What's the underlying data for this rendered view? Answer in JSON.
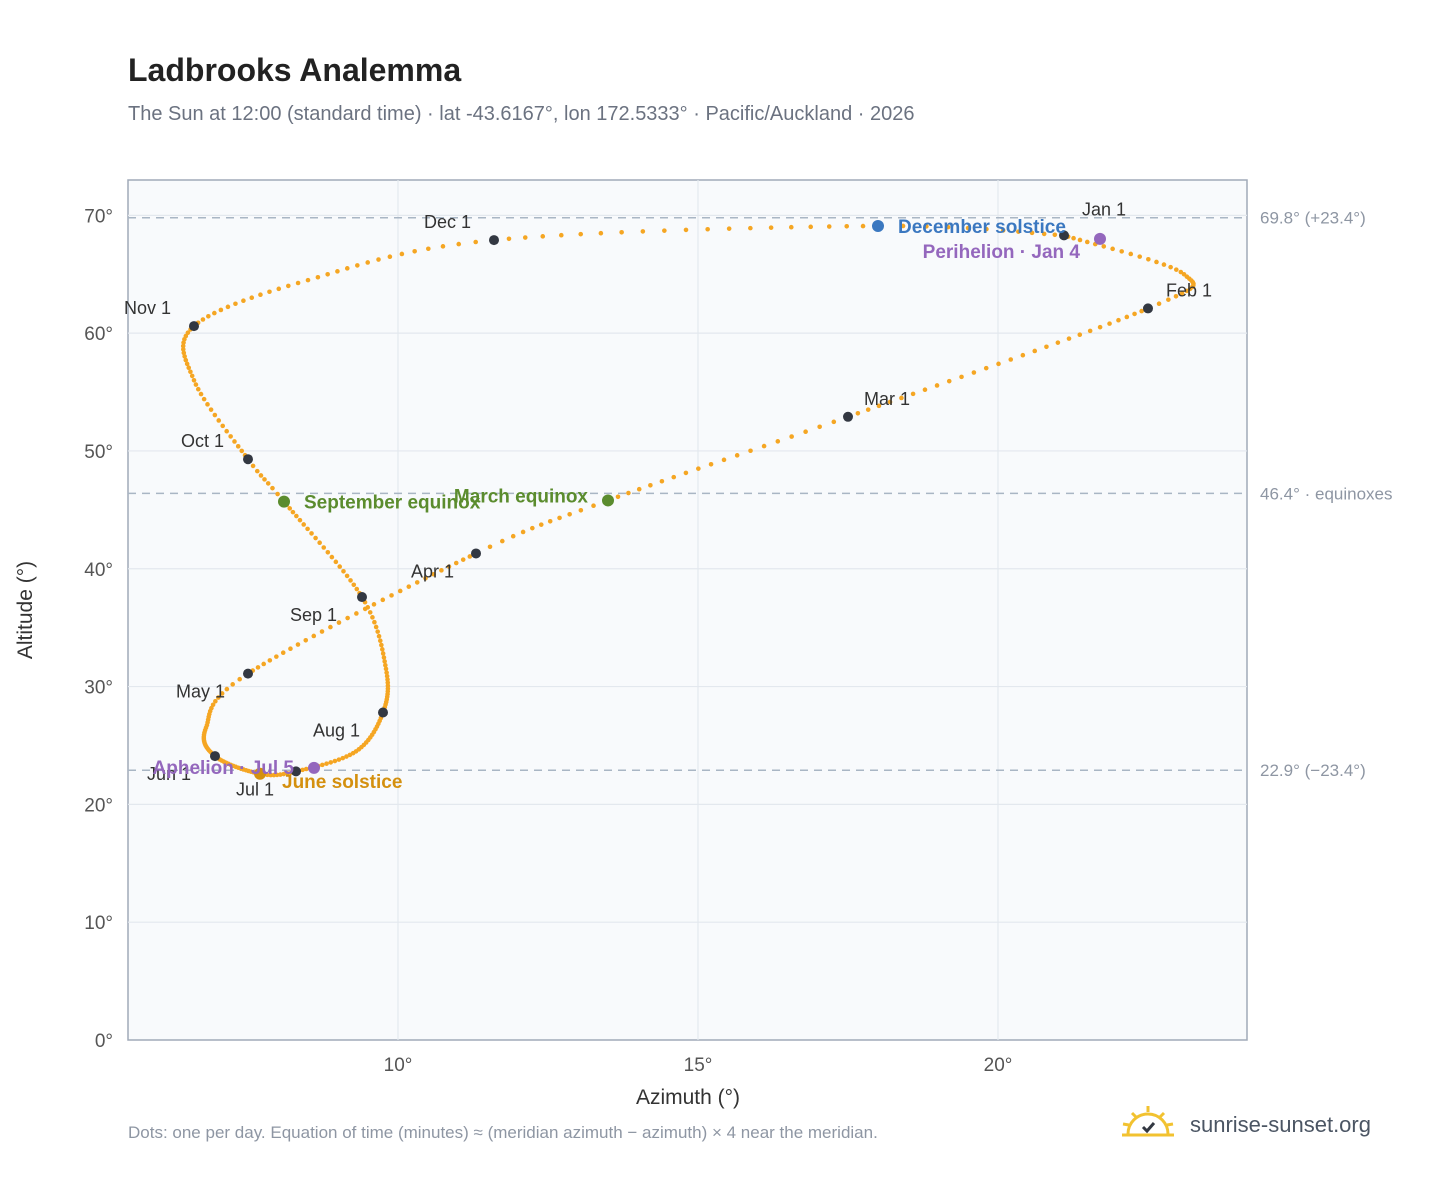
{
  "header": {
    "title": "Ladbrooks Analemma",
    "subtitle": "The Sun at 12:00 (standard time) · lat -43.6167°, lon 172.5333° · Pacific/Auckland · 2026"
  },
  "footer": {
    "note": "Dots: one per day. Equation of time (minutes) ≈ (meridian azimuth − azimuth) × 4 near the meridian.",
    "brand": "sunrise-sunset.org"
  },
  "colors": {
    "path": "#f5a623",
    "month_marker": "#333842",
    "equinox": "#5b8c2e",
    "december_solstice": "#3b78c0",
    "june_solstice": "#d4900f",
    "apsis": "#9467bd",
    "reference_line": "#a9b6c4",
    "plot_background": "#f8fafc",
    "plot_border": "#a0aab8",
    "grid": "#e3e8ee"
  },
  "chart_data": {
    "type": "scatter",
    "title": "Ladbrooks Analemma",
    "xlabel": "Azimuth (°)",
    "ylabel": "Altitude (°)",
    "xlim": [
      5.5,
      24.15
    ],
    "ylim": [
      0,
      73
    ],
    "xticks": [
      10,
      15,
      20
    ],
    "xtick_labels": [
      "10°",
      "15°",
      "20°"
    ],
    "yticks": [
      0,
      10,
      20,
      30,
      40,
      50,
      60,
      70
    ],
    "ytick_labels": [
      "0°",
      "10°",
      "20°",
      "30°",
      "40°",
      "50°",
      "60°",
      "70°"
    ],
    "grid": true,
    "reference_lines": [
      {
        "y": 69.8,
        "label": "69.8° (+23.4°)"
      },
      {
        "y": 46.4,
        "label": "46.4° · equinoxes"
      },
      {
        "y": 22.9,
        "label": "22.9° (−23.4°)"
      }
    ],
    "daily_path_anchors": [
      {
        "doy": 1,
        "az": 21.1,
        "alt": 68.3
      },
      {
        "doy": 18,
        "az": 23.1,
        "alt": 65.0
      },
      {
        "doy": 32,
        "az": 22.5,
        "alt": 62.1
      },
      {
        "doy": 60,
        "az": 17.5,
        "alt": 52.9
      },
      {
        "doy": 79,
        "az": 13.5,
        "alt": 45.8
      },
      {
        "doy": 91,
        "az": 11.3,
        "alt": 41.3
      },
      {
        "doy": 121,
        "az": 7.5,
        "alt": 31.1
      },
      {
        "doy": 136,
        "az": 6.8,
        "alt": 26.5
      },
      {
        "doy": 152,
        "az": 6.95,
        "alt": 24.1
      },
      {
        "doy": 172,
        "az": 7.7,
        "alt": 22.6
      },
      {
        "doy": 182,
        "az": 8.3,
        "alt": 22.8
      },
      {
        "doy": 198,
        "az": 9.3,
        "alt": 24.5
      },
      {
        "doy": 213,
        "az": 9.75,
        "alt": 27.8
      },
      {
        "doy": 228,
        "az": 9.8,
        "alt": 31.5
      },
      {
        "doy": 244,
        "az": 9.4,
        "alt": 37.6
      },
      {
        "doy": 266,
        "az": 8.1,
        "alt": 45.7
      },
      {
        "doy": 274,
        "az": 7.5,
        "alt": 49.3
      },
      {
        "doy": 290,
        "az": 6.6,
        "alt": 56.0
      },
      {
        "doy": 305,
        "az": 6.6,
        "alt": 60.6
      },
      {
        "doy": 320,
        "az": 8.5,
        "alt": 64.5
      },
      {
        "doy": 335,
        "az": 11.6,
        "alt": 67.9
      },
      {
        "doy": 355,
        "az": 18.0,
        "alt": 69.1
      },
      {
        "doy": 366,
        "az": 21.1,
        "alt": 68.3
      }
    ],
    "month_markers": [
      {
        "label": "Jan 1",
        "az": 21.1,
        "alt": 68.3
      },
      {
        "label": "Feb 1",
        "az": 22.5,
        "alt": 62.1
      },
      {
        "label": "Mar 1",
        "az": 17.5,
        "alt": 52.9
      },
      {
        "label": "Apr 1",
        "az": 11.3,
        "alt": 41.3
      },
      {
        "label": "May 1",
        "az": 7.5,
        "alt": 31.1
      },
      {
        "label": "Jun 1",
        "az": 6.95,
        "alt": 24.1
      },
      {
        "label": "Jul 1",
        "az": 8.3,
        "alt": 22.8
      },
      {
        "label": "Aug 1",
        "az": 9.75,
        "alt": 27.8
      },
      {
        "label": "Sep 1",
        "az": 9.4,
        "alt": 37.6
      },
      {
        "label": "Oct 1",
        "az": 7.5,
        "alt": 49.3
      },
      {
        "label": "Nov 1",
        "az": 6.6,
        "alt": 60.6
      },
      {
        "label": "Dec 1",
        "az": 11.6,
        "alt": 67.9
      }
    ],
    "events": [
      {
        "label": "December solstice",
        "az": 18.0,
        "alt": 69.1,
        "color": "#3b78c0"
      },
      {
        "label": "Perihelion · Jan 4",
        "az": 21.7,
        "alt": 68.0,
        "color": "#9467bd"
      },
      {
        "label": "March equinox",
        "az": 13.5,
        "alt": 45.8,
        "color": "#5b8c2e"
      },
      {
        "label": "September equinox",
        "az": 8.1,
        "alt": 45.7,
        "color": "#5b8c2e"
      },
      {
        "label": "June solstice",
        "az": 7.7,
        "alt": 22.6,
        "color": "#d4900f"
      },
      {
        "label": "Aphelion · Jul 5",
        "az": 8.6,
        "alt": 23.1,
        "color": "#9467bd"
      }
    ]
  }
}
